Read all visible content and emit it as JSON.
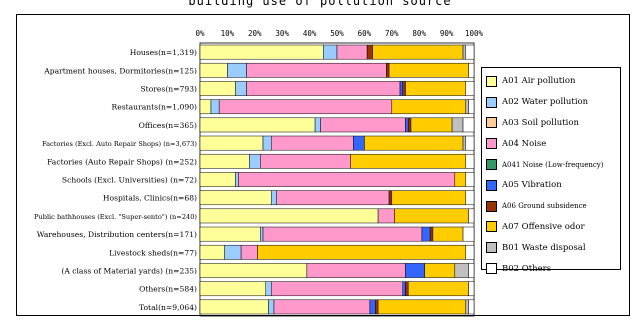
{
  "title": "building use of pollution source",
  "chart_data": {
    "type": "bar",
    "orientation": "horizontal",
    "stacked": true,
    "percent": true,
    "xlim": [
      0,
      100
    ],
    "xticks": [
      "0%",
      "10%",
      "20%",
      "30%",
      "40%",
      "50%",
      "60%",
      "70%",
      "80%",
      "90%",
      "100%"
    ],
    "legend_placement": "right",
    "categories": [
      "Houses(n=1,319)",
      "Apartment houses, Dormitories(n=125)",
      "Stores(n=793)",
      "Restaurants(n=1,090)",
      "Offices(n=365)",
      "Factories (Excl. Auto Repair Shops) (n=3,673)",
      "Factories (Auto Repair Shops) (n=252)",
      "Schools (Excl. Universities) (n=72)",
      "Hospitals, Clinics(n=68)",
      "Public bathhouses (Excl. \"Super-sento\") (n=240)",
      "Warehouses, Distribution centers(n=171)",
      "Livestock sheds(n=77)",
      "(A class of Material yards) (n=235)",
      "Others(n=584)",
      "Total(n=9,064)"
    ],
    "series": [
      {
        "name": "A01 Air pollution",
        "color": "#ffff99",
        "values": [
          45,
          10,
          13,
          4,
          42,
          23,
          18,
          13,
          26,
          65,
          22,
          9,
          39,
          24,
          25
        ]
      },
      {
        "name": "A02 Water pollution",
        "color": "#99ccff",
        "values": [
          5,
          7,
          4,
          3,
          2,
          3,
          4,
          1,
          2,
          0,
          1,
          6,
          0,
          2,
          2
        ]
      },
      {
        "name": "A03 Soil pollution",
        "color": "#ffcc99",
        "values": [
          0,
          0,
          0,
          0,
          0,
          0,
          0,
          0,
          0,
          0,
          0,
          0,
          0,
          0,
          0
        ]
      },
      {
        "name": "A04 Noise",
        "color": "#ff99cc",
        "values": [
          11,
          51,
          56,
          63,
          31,
          30,
          33,
          79,
          41,
          6,
          58,
          6,
          36,
          48,
          35
        ]
      },
      {
        "name": "A041 Noise (Low-frequency)",
        "color": "#339966",
        "values": [
          0,
          0,
          0,
          0,
          0,
          0,
          0,
          0,
          0,
          0,
          0,
          0,
          0,
          0,
          0
        ]
      },
      {
        "name": "A05 Vibration",
        "color": "#3366ff",
        "values": [
          0,
          0,
          1,
          0,
          1,
          4,
          0,
          0,
          0,
          0,
          3,
          0,
          7,
          1,
          2
        ]
      },
      {
        "name": "A06 Ground subsidence",
        "color": "#993300",
        "values": [
          2,
          1,
          1,
          0,
          1,
          0,
          0,
          0,
          1,
          0,
          1,
          0,
          0,
          1,
          1
        ]
      },
      {
        "name": "A07 Offensive odor",
        "color": "#ffcc00",
        "values": [
          33,
          29,
          22,
          27,
          15,
          36,
          42,
          4,
          27,
          27,
          11,
          76,
          11,
          22,
          32
        ]
      },
      {
        "name": "B01 Waste disposal",
        "color": "#c0c0c0",
        "values": [
          1,
          0,
          0,
          1,
          4,
          1,
          0,
          0,
          0,
          0,
          0,
          0,
          5,
          0,
          1
        ]
      },
      {
        "name": "B02 Others",
        "color": "#ffffff",
        "values": [
          3,
          2,
          3,
          2,
          4,
          3,
          3,
          3,
          3,
          2,
          4,
          3,
          2,
          2,
          2
        ]
      }
    ]
  }
}
